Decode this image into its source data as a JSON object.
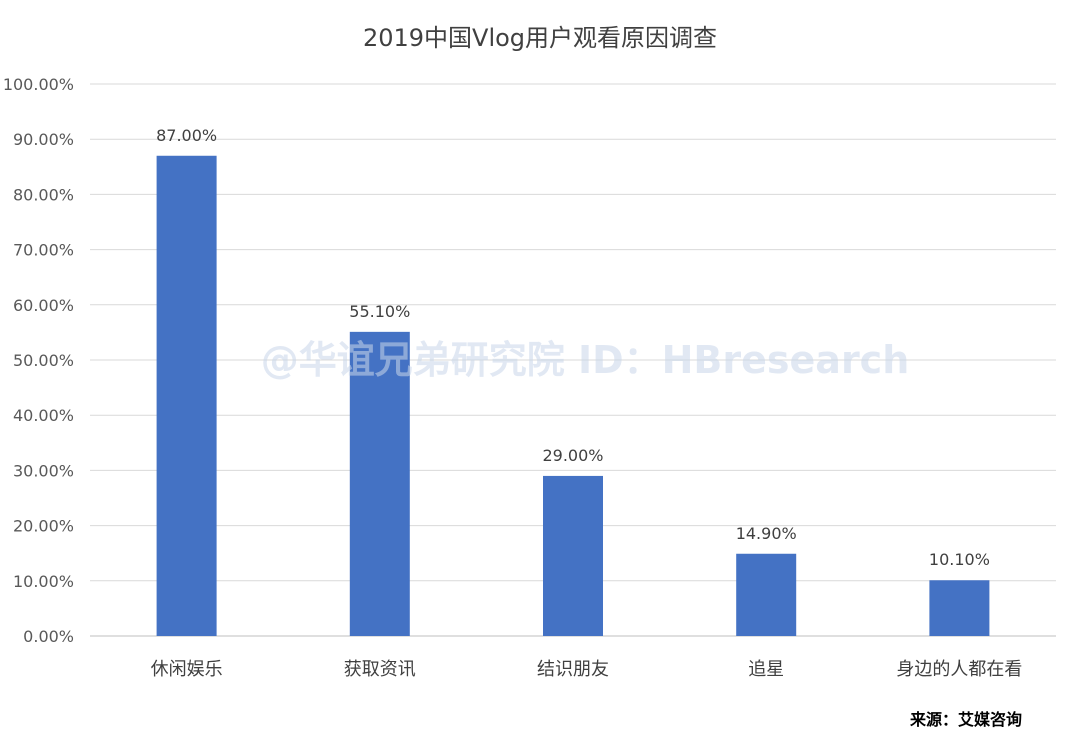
{
  "chart_data": {
    "type": "bar",
    "title": "2019中国Vlog用户观看原因调查",
    "categories": [
      "休闲娱乐",
      "获取资讯",
      "结识朋友",
      "追星",
      "身边的人都在看"
    ],
    "values": [
      87.0,
      55.1,
      29.0,
      14.9,
      10.1
    ],
    "data_labels": [
      "87.00%",
      "55.10%",
      "29.00%",
      "14.90%",
      "10.10%"
    ],
    "y_ticks": [
      "0.00%",
      "10.00%",
      "20.00%",
      "30.00%",
      "40.00%",
      "50.00%",
      "60.00%",
      "70.00%",
      "80.00%",
      "90.00%",
      "100.00%"
    ],
    "ylim": [
      0,
      100
    ],
    "xlabel": "",
    "ylabel": "",
    "grid": true,
    "bar_color": "#4472c4"
  },
  "watermark": "@华谊兄弟研究院 ID：HBresearch",
  "source": "来源：艾媒咨询"
}
